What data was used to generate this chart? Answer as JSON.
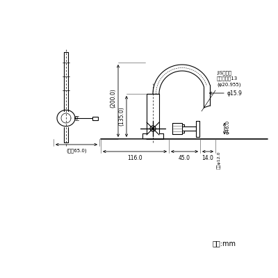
{
  "bg_color": "#ffffff",
  "line_color": "#000000",
  "dim_color": "#000000",
  "fig_width": 4.0,
  "fig_height": 4.0,
  "title": "",
  "unit_label": "単位:mm",
  "dims": {
    "label_200": "(200.0)",
    "label_135": "(135.0)",
    "label_116": "116.0",
    "label_45": "45.0",
    "label_14": "14.0",
    "label_65": "(最圓65.0)",
    "label_phi159": "φ15.9",
    "label_phi46": "φ46.0",
    "label_phi120": "内径φ12.0",
    "jis_label": "JIS給水栓\n取付ねじ１13\n(φ20.955)"
  }
}
